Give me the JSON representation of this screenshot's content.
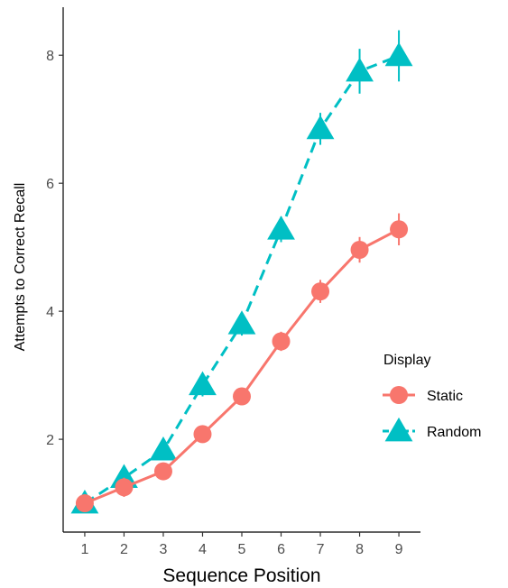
{
  "chart_data": {
    "type": "line",
    "title": "",
    "xlabel": "Sequence Position",
    "ylabel": "Attempts to Correct Recall",
    "x": [
      1,
      2,
      3,
      4,
      5,
      6,
      7,
      8,
      9
    ],
    "x_tick_labels": [
      "1",
      "2",
      "3",
      "4",
      "5",
      "6",
      "7",
      "8",
      "9"
    ],
    "y_ticks": [
      2,
      4,
      6,
      8
    ],
    "y_tick_labels": [
      "2",
      "4",
      "6",
      "8"
    ],
    "xlim": [
      0.45,
      9.55
    ],
    "ylim": [
      0.55,
      8.75
    ],
    "grid": false,
    "legend": {
      "title": "Display",
      "placement": "right"
    },
    "series": [
      {
        "name": "Static",
        "color": "#F8766D",
        "marker": "circle",
        "linestyle": "solid",
        "values": [
          1.0,
          1.25,
          1.5,
          2.08,
          2.67,
          3.53,
          4.31,
          4.96,
          5.28
        ],
        "error": [
          0.1,
          0.15,
          0.12,
          0.12,
          0.12,
          0.15,
          0.18,
          0.2,
          0.25
        ]
      },
      {
        "name": "Random",
        "color": "#00BFC4",
        "marker": "triangle",
        "linestyle": "dashed",
        "values": [
          1.0,
          1.4,
          1.83,
          2.85,
          3.8,
          5.28,
          6.85,
          7.75,
          7.99
        ],
        "error": [
          0.12,
          0.15,
          0.15,
          0.18,
          0.18,
          0.2,
          0.25,
          0.35,
          0.4
        ]
      }
    ]
  }
}
